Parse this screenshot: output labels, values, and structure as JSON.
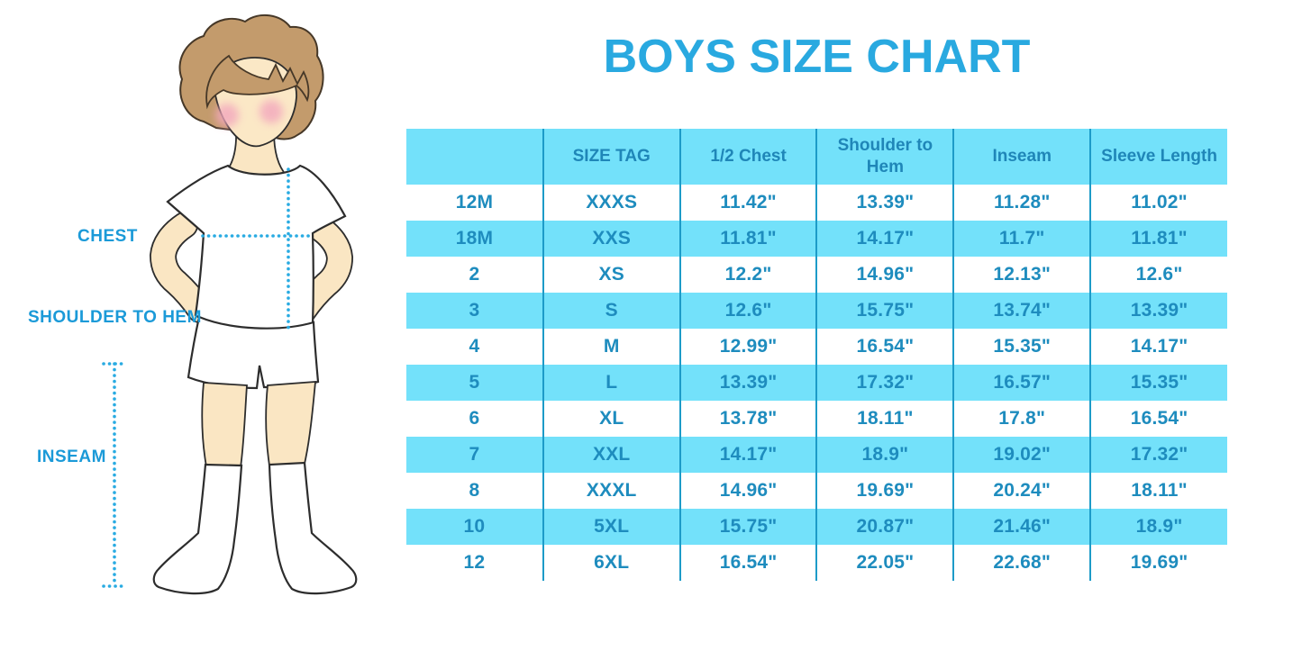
{
  "title": "BOYS SIZE CHART",
  "figure": {
    "description": "illustrated boy wearing white t-shirt, shorts and knee socks with dotted measurement guides",
    "labels": {
      "chest": "CHEST",
      "shoulder_to_hem": "SHOULDER TO HEM",
      "inseam": "INSEAM"
    }
  },
  "size_table": {
    "headers": [
      "",
      "SIZE TAG",
      "1/2 Chest",
      "Shoulder to Hem",
      "Inseam",
      "Sleeve Length"
    ],
    "rows": [
      [
        "12M",
        "XXXS",
        "11.42\"",
        "13.39\"",
        "11.28\"",
        "11.02\""
      ],
      [
        "18M",
        "XXS",
        "11.81\"",
        "14.17\"",
        "11.7\"",
        "11.81\""
      ],
      [
        "2",
        "XS",
        "12.2\"",
        "14.96\"",
        "12.13\"",
        "12.6\""
      ],
      [
        "3",
        "S",
        "12.6\"",
        "15.75\"",
        "13.74\"",
        "13.39\""
      ],
      [
        "4",
        "M",
        "12.99\"",
        "16.54\"",
        "15.35\"",
        "14.17\""
      ],
      [
        "5",
        "L",
        "13.39\"",
        "17.32\"",
        "16.57\"",
        "15.35\""
      ],
      [
        "6",
        "XL",
        "13.78\"",
        "18.11\"",
        "17.8\"",
        "16.54\""
      ],
      [
        "7",
        "XXL",
        "14.17\"",
        "18.9\"",
        "19.02\"",
        "17.32\""
      ],
      [
        "8",
        "XXXL",
        "14.96\"",
        "19.69\"",
        "20.24\"",
        "18.11\""
      ],
      [
        "10",
        "5XL",
        "15.75\"",
        "20.87\"",
        "21.46\"",
        "18.9\""
      ],
      [
        "12",
        "6XL",
        "16.54\"",
        "22.05\"",
        "22.68\"",
        "19.69\""
      ]
    ]
  },
  "colors": {
    "title_blue": "#29A9E0",
    "row_band_blue": "#73E1FA",
    "table_text_blue": "#1E8CBE",
    "divider_blue": "#1D9BC8",
    "label_blue": "#1B9AD8",
    "dotted_line_blue": "#29ABE2",
    "skin": "#FAE6C3",
    "hair": "#C39B6C",
    "blush": "#F3A7BD"
  }
}
